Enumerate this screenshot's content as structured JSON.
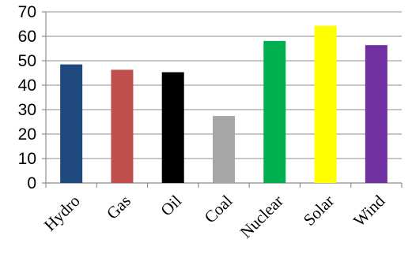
{
  "chart_data": {
    "type": "bar",
    "title": "",
    "xlabel": "",
    "ylabel": "",
    "categories": [
      "Hydro",
      "Gas",
      "Oil",
      "Coal",
      "Nuclear",
      "Solar",
      "Wind"
    ],
    "values": [
      48.5,
      46.3,
      45.3,
      27.4,
      58.1,
      64.3,
      56.4
    ],
    "colors": [
      "#1f497d",
      "#c0504d",
      "#000000",
      "#a6a6a6",
      "#00b050",
      "#ffff00",
      "#7030a0"
    ],
    "ylim": [
      0,
      70
    ],
    "yticks": [
      0,
      10,
      20,
      30,
      40,
      50,
      60,
      70
    ],
    "grid": true,
    "legend": "none"
  }
}
